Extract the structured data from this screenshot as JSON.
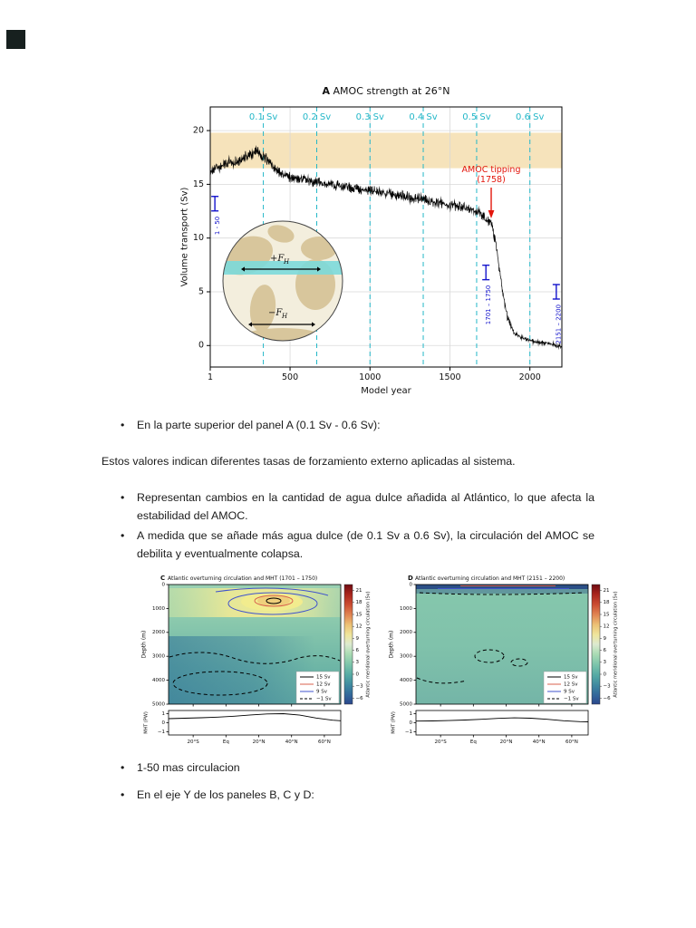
{
  "page": {
    "background": "#ffffff",
    "corner_square_color": "#17201f"
  },
  "bullets": {
    "marker": "•",
    "b1": "En la parte superior del panel A (0.1 Sv - 0.6 Sv):",
    "p1": "Estos valores indican diferentes tasas de forzamiento externo aplicadas al sistema.",
    "b2": "Representan cambios en la cantidad de agua dulce añadida al Atlántico, lo que afecta la estabilidad del AMOC.",
    "b3": "A medida que se añade más agua dulce (de 0.1 Sv a 0.6 Sv), la circulación del AMOC se debilita y eventualmente colapsa.",
    "b4": "1-50 mas circulacion",
    "b5": "En el eje Y de los paneles B, C y D:"
  },
  "chart_data": [
    {
      "id": "panelA",
      "type": "line",
      "panel_letter": "A",
      "title": "AMOC strength at 26°N",
      "xlabel": "Model year",
      "ylabel": "Volume transport (Sv)",
      "xlim": [
        1,
        2200
      ],
      "ylim": [
        -2,
        22.2
      ],
      "xticks": [
        1,
        500,
        1000,
        1500,
        2000
      ],
      "yticks": [
        0,
        5,
        10,
        15,
        20
      ],
      "grid": true,
      "forcing_marks": {
        "color": "#23b7c8",
        "years": [
          333,
          667,
          1000,
          1333,
          1667,
          2000
        ],
        "labels": [
          "0.1 Sv",
          "0.2 Sv",
          "0.3 Sv",
          "0.4 Sv",
          "0.5 Sv",
          "0.6 Sv"
        ]
      },
      "shaded_band": {
        "from": 16.5,
        "to": 19.8,
        "color": "#f6e3bb"
      },
      "tipping": {
        "line1": "AMOC tipping",
        "line2": "(1758)",
        "year": 1758,
        "color": "#e3170d"
      },
      "period_markers": {
        "color": "#1414cc",
        "items": [
          {
            "label": "1 - 50",
            "year": 30,
            "value": 13.2
          },
          {
            "label": "1701 – 1750",
            "year": 1725,
            "value": 6.8
          },
          {
            "label": "2151 – 2200",
            "year": 2165,
            "value": 5.0
          }
        ]
      },
      "series": {
        "name": "AMOC strength",
        "keypoints": [
          [
            1,
            16.2
          ],
          [
            80,
            16.8
          ],
          [
            180,
            17.2
          ],
          [
            290,
            18.1
          ],
          [
            340,
            17.5
          ],
          [
            420,
            16.2
          ],
          [
            500,
            15.6
          ],
          [
            620,
            15.3
          ],
          [
            760,
            15.0
          ],
          [
            900,
            14.6
          ],
          [
            1050,
            14.3
          ],
          [
            1200,
            13.9
          ],
          [
            1350,
            13.5
          ],
          [
            1500,
            13.1
          ],
          [
            1620,
            12.7
          ],
          [
            1700,
            12.2
          ],
          [
            1758,
            11.4
          ],
          [
            1790,
            9.2
          ],
          [
            1825,
            5.5
          ],
          [
            1860,
            2.6
          ],
          [
            1900,
            1.2
          ],
          [
            1960,
            0.6
          ],
          [
            2050,
            0.3
          ],
          [
            2150,
            0.1
          ],
          [
            2200,
            -0.1
          ]
        ],
        "noise_amplitude": 0.55
      },
      "inset": {
        "plus_label": "+F",
        "minus_label": "−F",
        "sub": "H",
        "band_color": "#7cd9da",
        "land_color": "#d8c69c",
        "ocean_color": "#f3eedd"
      }
    },
    {
      "id": "panelC",
      "type": "heatmap",
      "panel_letter": "C",
      "title": "Atlantic overturning circulation and MHT (1701 – 1750)",
      "ylabel": "Depth (m)",
      "yticks": [
        0,
        1000,
        2000,
        3000,
        4000,
        5000
      ],
      "lat_range": [
        -35,
        70
      ],
      "xticks": [
        [
          -20,
          "20°S"
        ],
        [
          0,
          "Eq"
        ],
        [
          20,
          "20°N"
        ],
        [
          40,
          "40°N"
        ],
        [
          60,
          "60°N"
        ]
      ],
      "colorbar": {
        "label": "Atlantic meridional overturning circulation (Sv)",
        "ticks": [
          21,
          18,
          15,
          12,
          9,
          6,
          3,
          0,
          -3,
          -6
        ],
        "range": [
          22.5,
          -7.5
        ],
        "gradient": [
          [
            0,
            "#6e0b12"
          ],
          [
            0.08,
            "#a8251c"
          ],
          [
            0.17,
            "#cc4e33"
          ],
          [
            0.26,
            "#e28a56"
          ],
          [
            0.34,
            "#ecc377"
          ],
          [
            0.42,
            "#efe59c"
          ],
          [
            0.5,
            "#dcead0"
          ],
          [
            0.58,
            "#abdcb4"
          ],
          [
            0.67,
            "#7cc4ab"
          ],
          [
            0.76,
            "#54a9a4"
          ],
          [
            0.85,
            "#3d86a0"
          ],
          [
            0.93,
            "#32659a"
          ],
          [
            1,
            "#2b478c"
          ]
        ]
      },
      "legend": [
        {
          "label": "15 Sv",
          "color": "#000000",
          "dash": false
        },
        {
          "label": "12 Sv",
          "color": "#d8604e",
          "dash": false
        },
        {
          "label": "9 Sv",
          "color": "#4053cc",
          "dash": false
        },
        {
          "label": "−1 Sv",
          "color": "#000000",
          "dash": true
        }
      ],
      "mht": {
        "ylabel": "MHT (PW)",
        "yticks": [
          1,
          0,
          -1
        ],
        "lat": [
          -35,
          -25,
          -15,
          -5,
          5,
          15,
          25,
          35,
          45,
          55,
          65,
          70
        ],
        "values": [
          0.45,
          0.5,
          0.55,
          0.62,
          0.72,
          0.86,
          0.97,
          1.0,
          0.84,
          0.52,
          0.28,
          0.22
        ]
      }
    },
    {
      "id": "panelD",
      "type": "heatmap",
      "panel_letter": "D",
      "title": "Atlantic overturning circulation and MHT (2151 – 2200)",
      "ylabel": "Depth (m)",
      "yticks": [
        0,
        1000,
        2000,
        3000,
        4000,
        5000
      ],
      "lat_range": [
        -35,
        70
      ],
      "xticks": [
        [
          -20,
          "20°S"
        ],
        [
          0,
          "Eq"
        ],
        [
          20,
          "20°N"
        ],
        [
          40,
          "40°N"
        ],
        [
          60,
          "60°N"
        ]
      ],
      "colorbar": {
        "label": "Atlantic meridional overturning circulation (Sv)",
        "ticks": [
          21,
          18,
          15,
          12,
          9,
          6,
          3,
          0,
          -3,
          -6
        ],
        "range": [
          22.5,
          -7.5
        ],
        "gradient": [
          [
            0,
            "#6e0b12"
          ],
          [
            0.08,
            "#a8251c"
          ],
          [
            0.17,
            "#cc4e33"
          ],
          [
            0.26,
            "#e28a56"
          ],
          [
            0.34,
            "#ecc377"
          ],
          [
            0.42,
            "#efe59c"
          ],
          [
            0.5,
            "#dcead0"
          ],
          [
            0.58,
            "#abdcb4"
          ],
          [
            0.67,
            "#7cc4ab"
          ],
          [
            0.76,
            "#54a9a4"
          ],
          [
            0.85,
            "#3d86a0"
          ],
          [
            0.93,
            "#32659a"
          ],
          [
            1,
            "#2b478c"
          ]
        ]
      },
      "legend": [
        {
          "label": "15 Sv",
          "color": "#000000",
          "dash": false
        },
        {
          "label": "12 Sv",
          "color": "#d8604e",
          "dash": false
        },
        {
          "label": "9 Sv",
          "color": "#4053cc",
          "dash": false
        },
        {
          "label": "−1 Sv",
          "color": "#000000",
          "dash": true
        }
      ],
      "mht": {
        "ylabel": "MHT (PW)",
        "yticks": [
          1,
          0,
          -1
        ],
        "lat": [
          -35,
          -25,
          -15,
          -5,
          5,
          15,
          25,
          35,
          45,
          55,
          65,
          70
        ],
        "values": [
          0.18,
          0.2,
          0.24,
          0.3,
          0.38,
          0.48,
          0.54,
          0.5,
          0.38,
          0.22,
          0.12,
          0.1
        ]
      }
    }
  ]
}
